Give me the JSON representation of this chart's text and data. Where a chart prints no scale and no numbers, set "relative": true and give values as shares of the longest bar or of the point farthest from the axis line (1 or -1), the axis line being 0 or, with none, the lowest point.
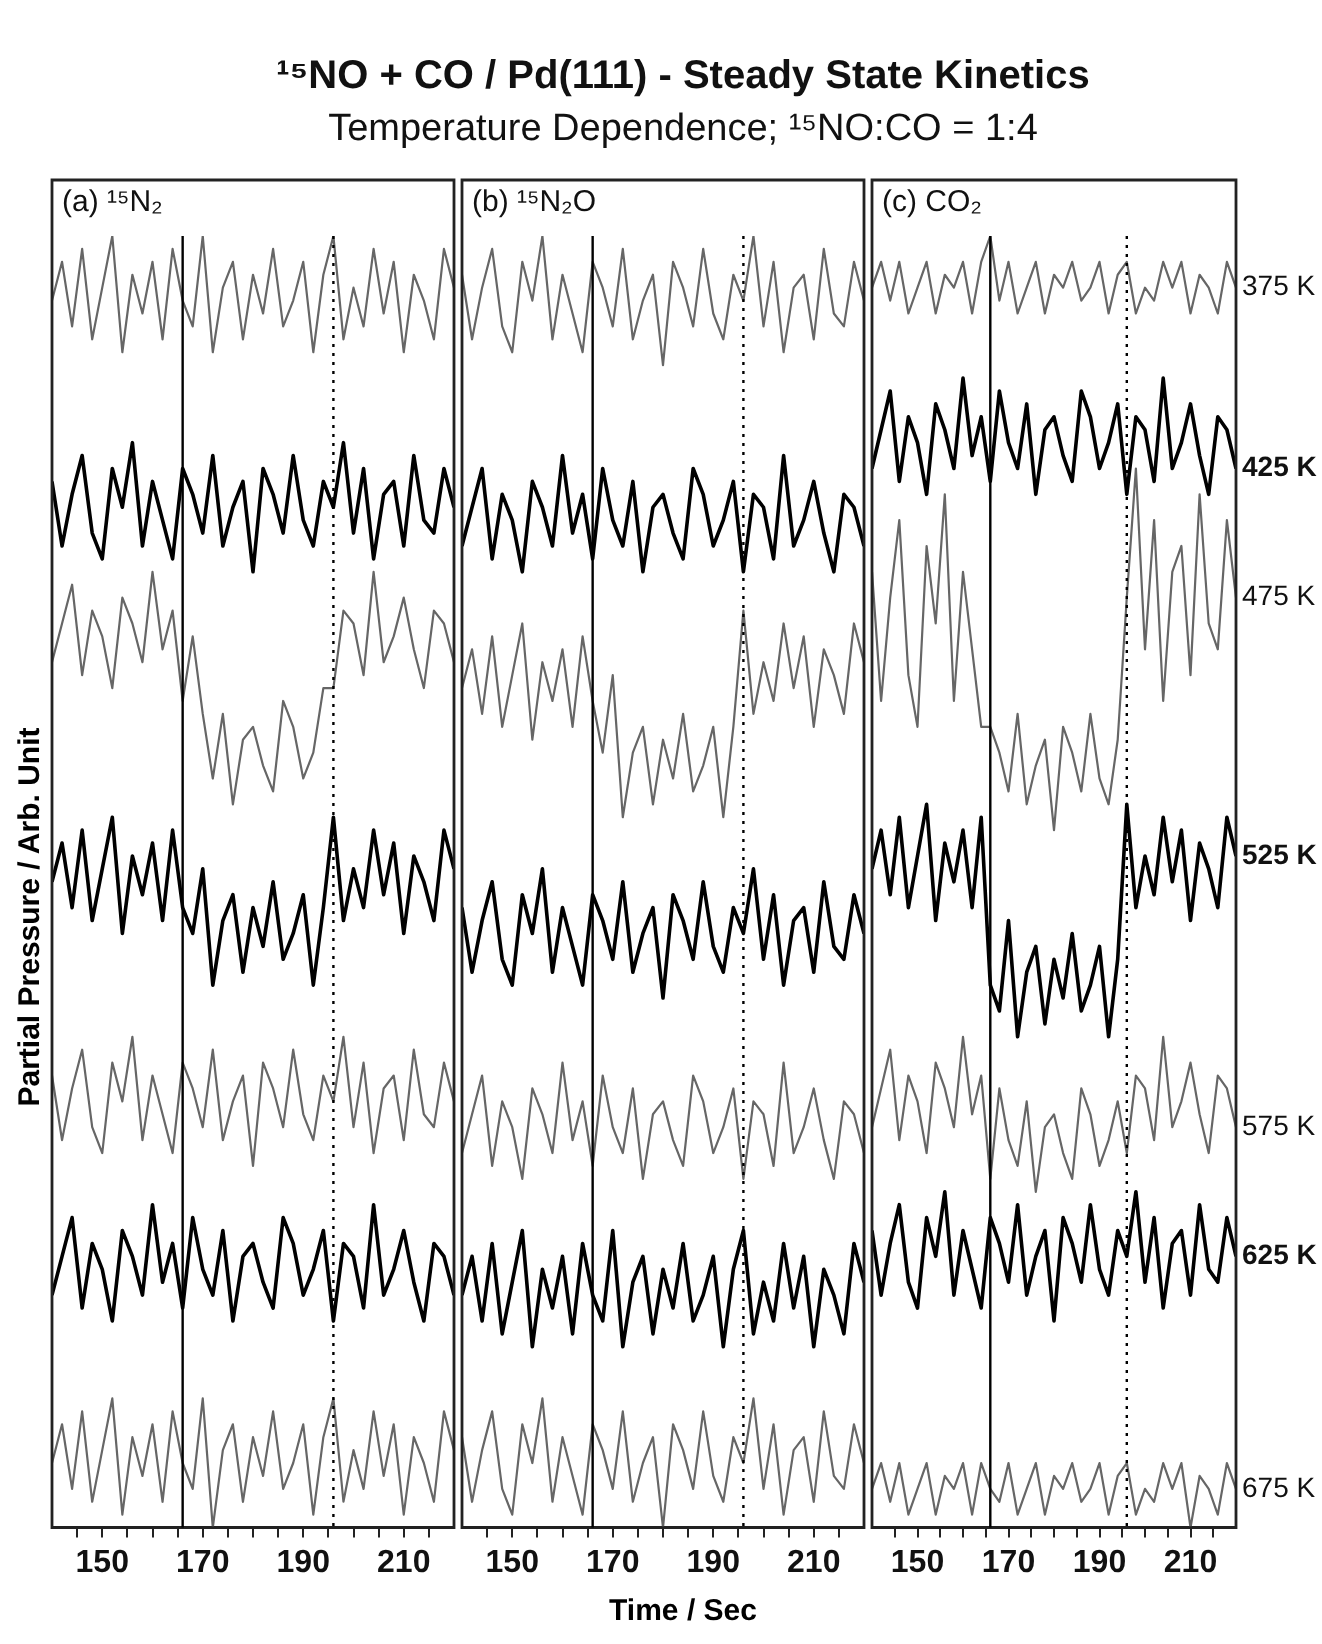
{
  "chart_data": [
    {
      "type": "line",
      "title": "¹⁵NO + CO / Pd(111) - Steady State Kinetics",
      "subtitle": "Temperature Dependence; ¹⁵NO:CO = 1:4",
      "ylabel": "Partial Pressure / Arb. Unit",
      "annotations": [
        "(a) ¹⁵N₂"
      ],
      "relative": true,
      "marker": "none",
      "grid": false,
      "legend": false,
      "tick_labels": "x",
      "xlim": [
        140,
        220
      ],
      "xticks": [
        {
          "value": 145,
          "label": null
        },
        150,
        {
          "value": 155,
          "label": null
        },
        {
          "value": 160,
          "label": null
        },
        {
          "value": 165,
          "label": null
        },
        170,
        {
          "value": 175,
          "label": null
        },
        {
          "value": 180,
          "label": null
        },
        {
          "value": 185,
          "label": null
        },
        190,
        {
          "value": 195,
          "label": null
        },
        {
          "value": 200,
          "label": null
        },
        {
          "value": 205,
          "label": null
        },
        210,
        {
          "value": 215,
          "label": null
        }
      ],
      "ref_lines": [
        {
          "axis": "x",
          "value": 166,
          "color": "#000000",
          "line_style": "solid"
        },
        {
          "axis": "x",
          "value": 196,
          "color": "#000000",
          "line_style": "dotted"
        }
      ],
      "x": [
        140,
        142,
        144,
        146,
        148,
        150,
        152,
        154,
        156,
        158,
        160,
        162,
        164,
        166,
        168,
        170,
        172,
        174,
        176,
        178,
        180,
        182,
        184,
        186,
        188,
        190,
        192,
        194,
        196,
        198,
        200,
        202,
        204,
        206,
        208,
        210,
        212,
        214,
        216,
        218,
        220
      ],
      "series": [
        {
          "color": "#666666",
          "values": [
            0.95,
            0.98,
            0.93,
            0.99,
            0.92,
            0.96,
            1.0,
            0.91,
            0.97,
            0.94,
            0.98,
            0.92,
            0.99,
            0.95,
            0.93,
            1.0,
            0.91,
            0.96,
            0.98,
            0.92,
            0.97,
            0.94,
            0.99,
            0.93,
            0.95,
            0.98,
            0.91,
            0.97,
            1.0,
            0.92,
            0.96,
            0.93,
            0.99,
            0.94,
            0.98,
            0.91,
            0.97,
            0.95,
            0.92,
            0.99,
            0.96
          ]
        },
        {
          "color": "#000000",
          "values": [
            0.81,
            0.76,
            0.8,
            0.83,
            0.77,
            0.75,
            0.82,
            0.79,
            0.84,
            0.76,
            0.81,
            0.78,
            0.75,
            0.82,
            0.8,
            0.77,
            0.83,
            0.76,
            0.79,
            0.81,
            0.74,
            0.82,
            0.8,
            0.77,
            0.83,
            0.78,
            0.76,
            0.81,
            0.79,
            0.84,
            0.77,
            0.82,
            0.75,
            0.8,
            0.81,
            0.76,
            0.83,
            0.78,
            0.77,
            0.82,
            0.79
          ]
        },
        {
          "color": "#666666",
          "values": [
            0.67,
            0.7,
            0.73,
            0.66,
            0.71,
            0.69,
            0.65,
            0.72,
            0.7,
            0.67,
            0.74,
            0.68,
            0.71,
            0.64,
            0.69,
            0.63,
            0.58,
            0.63,
            0.56,
            0.61,
            0.62,
            0.59,
            0.57,
            0.64,
            0.62,
            0.58,
            0.6,
            0.65,
            0.65,
            0.71,
            0.7,
            0.66,
            0.74,
            0.67,
            0.69,
            0.72,
            0.68,
            0.65,
            0.71,
            0.7,
            0.67
          ]
        },
        {
          "color": "#000000",
          "values": [
            0.5,
            0.53,
            0.48,
            0.54,
            0.47,
            0.51,
            0.55,
            0.46,
            0.52,
            0.49,
            0.53,
            0.47,
            0.54,
            0.48,
            0.46,
            0.51,
            0.42,
            0.47,
            0.49,
            0.43,
            0.48,
            0.45,
            0.5,
            0.44,
            0.46,
            0.49,
            0.42,
            0.48,
            0.55,
            0.47,
            0.51,
            0.48,
            0.54,
            0.49,
            0.53,
            0.46,
            0.52,
            0.5,
            0.47,
            0.54,
            0.51
          ]
        },
        {
          "color": "#666666",
          "values": [
            0.35,
            0.3,
            0.34,
            0.37,
            0.31,
            0.29,
            0.36,
            0.33,
            0.38,
            0.3,
            0.35,
            0.32,
            0.29,
            0.36,
            0.34,
            0.31,
            0.37,
            0.3,
            0.33,
            0.35,
            0.28,
            0.36,
            0.34,
            0.31,
            0.37,
            0.32,
            0.3,
            0.35,
            0.33,
            0.38,
            0.31,
            0.36,
            0.29,
            0.34,
            0.35,
            0.3,
            0.37,
            0.32,
            0.31,
            0.36,
            0.33
          ]
        },
        {
          "color": "#000000",
          "values": [
            0.18,
            0.21,
            0.24,
            0.17,
            0.22,
            0.2,
            0.16,
            0.23,
            0.21,
            0.18,
            0.25,
            0.19,
            0.22,
            0.17,
            0.24,
            0.2,
            0.18,
            0.23,
            0.16,
            0.21,
            0.22,
            0.19,
            0.17,
            0.24,
            0.22,
            0.18,
            0.2,
            0.23,
            0.16,
            0.22,
            0.21,
            0.17,
            0.25,
            0.18,
            0.2,
            0.23,
            0.19,
            0.16,
            0.22,
            0.21,
            0.18
          ]
        },
        {
          "color": "#666666",
          "values": [
            0.05,
            0.08,
            0.03,
            0.09,
            0.02,
            0.06,
            0.1,
            0.01,
            0.07,
            0.04,
            0.08,
            0.02,
            0.09,
            0.05,
            0.03,
            0.1,
            0.0,
            0.06,
            0.08,
            0.02,
            0.07,
            0.04,
            0.09,
            0.03,
            0.05,
            0.08,
            0.01,
            0.07,
            0.1,
            0.02,
            0.06,
            0.03,
            0.09,
            0.04,
            0.08,
            0.01,
            0.07,
            0.05,
            0.02,
            0.09,
            0.06
          ]
        }
      ]
    },
    {
      "type": "line",
      "xlabel": "Time / Sec",
      "annotations": [
        "(b) ¹⁵N₂O"
      ],
      "relative": true,
      "marker": "none",
      "grid": false,
      "legend": false,
      "tick_labels": "x",
      "xlim": [
        140,
        220
      ],
      "xticks": [
        {
          "value": 145,
          "label": null
        },
        150,
        {
          "value": 155,
          "label": null
        },
        {
          "value": 160,
          "label": null
        },
        {
          "value": 165,
          "label": null
        },
        170,
        {
          "value": 175,
          "label": null
        },
        {
          "value": 180,
          "label": null
        },
        {
          "value": 185,
          "label": null
        },
        190,
        {
          "value": 195,
          "label": null
        },
        {
          "value": 200,
          "label": null
        },
        {
          "value": 205,
          "label": null
        },
        210,
        {
          "value": 215,
          "label": null
        }
      ],
      "ref_lines": [
        {
          "axis": "x",
          "value": 166,
          "color": "#000000",
          "line_style": "solid"
        },
        {
          "axis": "x",
          "value": 196,
          "color": "#000000",
          "line_style": "dotted"
        }
      ],
      "x": [
        140,
        142,
        144,
        146,
        148,
        150,
        152,
        154,
        156,
        158,
        160,
        162,
        164,
        166,
        168,
        170,
        172,
        174,
        176,
        178,
        180,
        182,
        184,
        186,
        188,
        190,
        192,
        194,
        196,
        198,
        200,
        202,
        204,
        206,
        208,
        210,
        212,
        214,
        216,
        218,
        220
      ],
      "series": [
        {
          "color": "#666666",
          "values": [
            0.97,
            0.92,
            0.96,
            0.99,
            0.93,
            0.91,
            0.98,
            0.95,
            1.0,
            0.92,
            0.97,
            0.94,
            0.91,
            0.98,
            0.96,
            0.93,
            0.99,
            0.92,
            0.95,
            0.97,
            0.9,
            0.98,
            0.96,
            0.93,
            0.99,
            0.94,
            0.92,
            0.97,
            0.95,
            1.0,
            0.93,
            0.98,
            0.91,
            0.96,
            0.97,
            0.92,
            0.99,
            0.94,
            0.93,
            0.98,
            0.95
          ]
        },
        {
          "color": "#000000",
          "values": [
            0.76,
            0.79,
            0.82,
            0.75,
            0.8,
            0.78,
            0.74,
            0.81,
            0.79,
            0.76,
            0.83,
            0.77,
            0.8,
            0.75,
            0.82,
            0.78,
            0.76,
            0.81,
            0.74,
            0.79,
            0.8,
            0.77,
            0.75,
            0.82,
            0.8,
            0.76,
            0.78,
            0.81,
            0.74,
            0.8,
            0.79,
            0.75,
            0.83,
            0.76,
            0.78,
            0.81,
            0.77,
            0.74,
            0.8,
            0.79,
            0.76
          ]
        },
        {
          "color": "#666666",
          "values": [
            0.65,
            0.68,
            0.63,
            0.69,
            0.62,
            0.66,
            0.7,
            0.61,
            0.67,
            0.64,
            0.68,
            0.62,
            0.69,
            0.64,
            0.6,
            0.66,
            0.55,
            0.6,
            0.62,
            0.56,
            0.61,
            0.58,
            0.63,
            0.57,
            0.59,
            0.62,
            0.55,
            0.62,
            0.71,
            0.63,
            0.67,
            0.64,
            0.7,
            0.65,
            0.69,
            0.62,
            0.68,
            0.66,
            0.63,
            0.7,
            0.67
          ]
        },
        {
          "color": "#000000",
          "values": [
            0.48,
            0.43,
            0.47,
            0.5,
            0.44,
            0.42,
            0.49,
            0.46,
            0.51,
            0.43,
            0.48,
            0.45,
            0.42,
            0.49,
            0.47,
            0.44,
            0.5,
            0.43,
            0.46,
            0.48,
            0.41,
            0.49,
            0.47,
            0.44,
            0.5,
            0.45,
            0.43,
            0.48,
            0.46,
            0.51,
            0.44,
            0.49,
            0.42,
            0.47,
            0.48,
            0.43,
            0.5,
            0.45,
            0.44,
            0.49,
            0.46
          ]
        },
        {
          "color": "#666666",
          "values": [
            0.29,
            0.32,
            0.35,
            0.28,
            0.33,
            0.31,
            0.27,
            0.34,
            0.32,
            0.29,
            0.36,
            0.3,
            0.33,
            0.28,
            0.35,
            0.31,
            0.29,
            0.34,
            0.27,
            0.32,
            0.33,
            0.3,
            0.28,
            0.35,
            0.33,
            0.29,
            0.31,
            0.34,
            0.27,
            0.33,
            0.32,
            0.28,
            0.36,
            0.29,
            0.31,
            0.34,
            0.3,
            0.27,
            0.33,
            0.32,
            0.29
          ]
        },
        {
          "color": "#000000",
          "values": [
            0.18,
            0.21,
            0.16,
            0.22,
            0.15,
            0.19,
            0.23,
            0.14,
            0.2,
            0.17,
            0.21,
            0.15,
            0.22,
            0.18,
            0.16,
            0.23,
            0.14,
            0.19,
            0.21,
            0.15,
            0.2,
            0.17,
            0.22,
            0.16,
            0.18,
            0.21,
            0.14,
            0.2,
            0.23,
            0.15,
            0.19,
            0.16,
            0.22,
            0.17,
            0.21,
            0.14,
            0.2,
            0.18,
            0.15,
            0.22,
            0.19
          ]
        },
        {
          "color": "#666666",
          "values": [
            0.07,
            0.02,
            0.06,
            0.09,
            0.03,
            0.01,
            0.08,
            0.05,
            0.1,
            0.02,
            0.07,
            0.04,
            0.01,
            0.08,
            0.06,
            0.03,
            0.09,
            0.02,
            0.05,
            0.07,
            0.0,
            0.08,
            0.06,
            0.03,
            0.09,
            0.04,
            0.02,
            0.07,
            0.05,
            0.1,
            0.03,
            0.08,
            0.01,
            0.06,
            0.07,
            0.02,
            0.09,
            0.04,
            0.03,
            0.08,
            0.05
          ]
        }
      ]
    },
    {
      "type": "line",
      "annotations": [
        "(c) CO₂"
      ],
      "relative": true,
      "marker": "none",
      "grid": false,
      "legend": false,
      "tick_labels": "x",
      "xlim": [
        140,
        220
      ],
      "xticks": [
        {
          "value": 145,
          "label": null
        },
        150,
        {
          "value": 155,
          "label": null
        },
        {
          "value": 160,
          "label": null
        },
        {
          "value": 165,
          "label": null
        },
        170,
        {
          "value": 175,
          "label": null
        },
        {
          "value": 180,
          "label": null
        },
        {
          "value": 185,
          "label": null
        },
        190,
        {
          "value": 195,
          "label": null
        },
        {
          "value": 200,
          "label": null
        },
        {
          "value": 205,
          "label": null
        },
        210,
        {
          "value": 215,
          "label": null
        }
      ],
      "ref_lines": [
        {
          "axis": "x",
          "value": 166,
          "color": "#000000",
          "line_style": "solid"
        },
        {
          "axis": "x",
          "value": 196,
          "color": "#000000",
          "line_style": "dotted"
        }
      ],
      "x": [
        140,
        142,
        144,
        146,
        148,
        150,
        152,
        154,
        156,
        158,
        160,
        162,
        164,
        166,
        168,
        170,
        172,
        174,
        176,
        178,
        180,
        182,
        184,
        186,
        188,
        190,
        192,
        194,
        196,
        198,
        200,
        202,
        204,
        206,
        208,
        210,
        212,
        214,
        216,
        218,
        220
      ],
      "series": [
        {
          "name": "375 K",
          "color": "#666666",
          "values": [
            0.96,
            0.98,
            0.95,
            0.98,
            0.94,
            0.96,
            0.98,
            0.94,
            0.97,
            0.96,
            0.98,
            0.94,
            0.98,
            1.0,
            0.95,
            0.98,
            0.94,
            0.96,
            0.98,
            0.94,
            0.97,
            0.96,
            0.98,
            0.95,
            0.96,
            0.98,
            0.94,
            0.97,
            0.98,
            0.94,
            0.96,
            0.95,
            0.98,
            0.96,
            0.98,
            0.94,
            0.97,
            0.96,
            0.94,
            0.98,
            0.96
          ]
        },
        {
          "name": "425 K",
          "color": "#000000",
          "values": [
            0.82,
            0.85,
            0.88,
            0.81,
            0.86,
            0.84,
            0.8,
            0.87,
            0.85,
            0.82,
            0.89,
            0.83,
            0.86,
            0.81,
            0.88,
            0.84,
            0.82,
            0.87,
            0.8,
            0.85,
            0.86,
            0.83,
            0.81,
            0.88,
            0.86,
            0.82,
            0.84,
            0.87,
            0.8,
            0.86,
            0.85,
            0.81,
            0.89,
            0.82,
            0.84,
            0.87,
            0.83,
            0.8,
            0.86,
            0.85,
            0.82
          ]
        },
        {
          "name": "475 K",
          "color": "#666666",
          "values": [
            0.74,
            0.64,
            0.72,
            0.78,
            0.66,
            0.62,
            0.76,
            0.7,
            0.8,
            0.64,
            0.74,
            0.68,
            0.62,
            0.62,
            0.6,
            0.57,
            0.63,
            0.56,
            0.59,
            0.61,
            0.54,
            0.62,
            0.6,
            0.57,
            0.63,
            0.58,
            0.56,
            0.61,
            0.72,
            0.82,
            0.68,
            0.78,
            0.64,
            0.74,
            0.76,
            0.66,
            0.8,
            0.7,
            0.68,
            0.78,
            0.72
          ]
        },
        {
          "name": "525 K",
          "color": "#000000",
          "values": [
            0.51,
            0.54,
            0.49,
            0.55,
            0.48,
            0.52,
            0.56,
            0.47,
            0.53,
            0.5,
            0.54,
            0.48,
            0.55,
            0.42,
            0.4,
            0.47,
            0.38,
            0.43,
            0.45,
            0.39,
            0.44,
            0.41,
            0.46,
            0.4,
            0.42,
            0.45,
            0.38,
            0.44,
            0.56,
            0.48,
            0.52,
            0.49,
            0.55,
            0.5,
            0.54,
            0.47,
            0.53,
            0.51,
            0.48,
            0.55,
            0.52
          ]
        },
        {
          "name": "575 K",
          "color": "#666666",
          "values": [
            0.31,
            0.34,
            0.37,
            0.3,
            0.35,
            0.33,
            0.29,
            0.36,
            0.34,
            0.31,
            0.38,
            0.32,
            0.35,
            0.27,
            0.34,
            0.3,
            0.28,
            0.33,
            0.26,
            0.31,
            0.32,
            0.29,
            0.27,
            0.34,
            0.32,
            0.28,
            0.3,
            0.33,
            0.29,
            0.35,
            0.34,
            0.3,
            0.38,
            0.31,
            0.33,
            0.36,
            0.32,
            0.29,
            0.35,
            0.34,
            0.31
          ]
        },
        {
          "name": "625 K",
          "color": "#000000",
          "values": [
            0.23,
            0.18,
            0.22,
            0.25,
            0.19,
            0.17,
            0.24,
            0.21,
            0.26,
            0.18,
            0.23,
            0.2,
            0.17,
            0.24,
            0.22,
            0.19,
            0.25,
            0.18,
            0.21,
            0.23,
            0.16,
            0.24,
            0.22,
            0.19,
            0.25,
            0.2,
            0.18,
            0.23,
            0.21,
            0.26,
            0.19,
            0.24,
            0.17,
            0.22,
            0.23,
            0.18,
            0.25,
            0.2,
            0.19,
            0.24,
            0.21
          ]
        },
        {
          "name": "675 K",
          "color": "#666666",
          "values": [
            0.03,
            0.05,
            0.02,
            0.05,
            0.01,
            0.03,
            0.05,
            0.01,
            0.04,
            0.03,
            0.05,
            0.01,
            0.05,
            0.03,
            0.02,
            0.05,
            0.01,
            0.03,
            0.05,
            0.01,
            0.04,
            0.03,
            0.05,
            0.02,
            0.03,
            0.05,
            0.01,
            0.04,
            0.05,
            0.01,
            0.03,
            0.02,
            0.05,
            0.03,
            0.05,
            0.0,
            0.04,
            0.03,
            0.01,
            0.05,
            0.03
          ]
        }
      ]
    }
  ]
}
